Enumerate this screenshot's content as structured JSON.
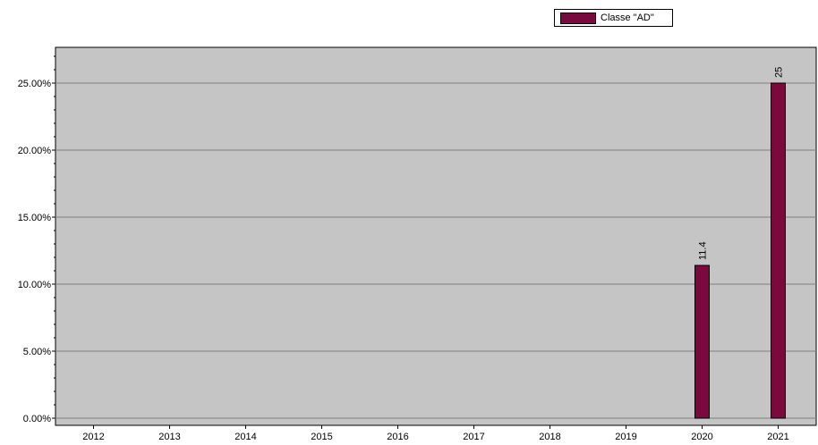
{
  "chart_data": {
    "type": "bar",
    "categories": [
      "2012",
      "2013",
      "2014",
      "2015",
      "2016",
      "2017",
      "2018",
      "2019",
      "2020",
      "2021"
    ],
    "series": [
      {
        "name": "Classe \"AD\"",
        "values": [
          null,
          null,
          null,
          null,
          null,
          null,
          null,
          null,
          11.4,
          25
        ],
        "data_labels": [
          "",
          "",
          "",
          "",
          "",
          "",
          "",
          "",
          "11.4",
          "25"
        ]
      }
    ],
    "yticks": [
      "0.00%",
      "5.00%",
      "10.00%",
      "15.00%",
      "20.00%",
      "25.00%"
    ],
    "ytick_values": [
      0,
      5,
      10,
      15,
      20,
      25
    ],
    "ylim": [
      0,
      27.7
    ],
    "grid": true,
    "legend_position": "top-right",
    "colors": {
      "bar": "#7a0a3d",
      "plot_background": "#c5c5c5",
      "grid": "#7f7f7f",
      "axis": "#000000"
    }
  }
}
